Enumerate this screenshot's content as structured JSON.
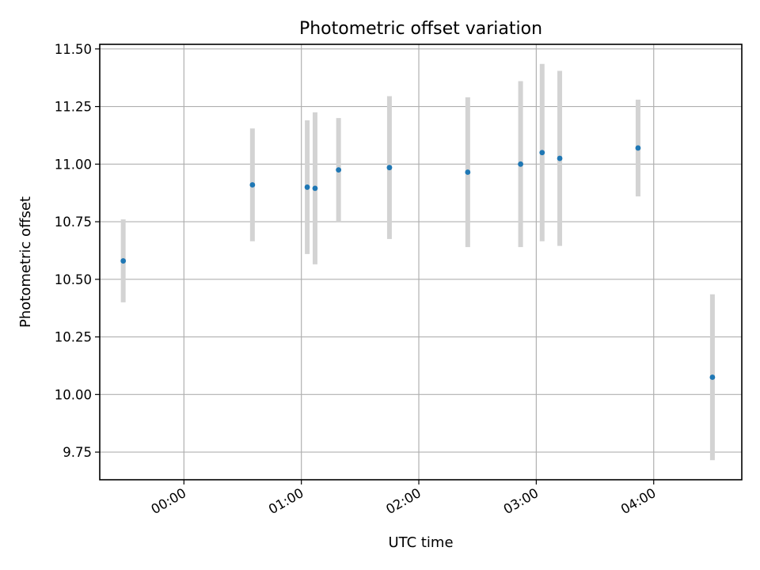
{
  "chart_data": {
    "type": "scatter",
    "title": "Photometric offset variation",
    "xlabel": "UTC time",
    "ylabel": "Photometric offset",
    "x_axis_type": "time",
    "x_ticks": [
      "00:00",
      "01:00",
      "02:00",
      "03:00",
      "04:00"
    ],
    "x_tick_minutes": [
      0,
      60,
      120,
      180,
      240
    ],
    "xlim_minutes": [
      -43,
      285
    ],
    "y_ticks": [
      "9.75",
      "10.00",
      "10.25",
      "10.50",
      "10.75",
      "11.00",
      "11.25",
      "11.50"
    ],
    "y_tick_values": [
      9.75,
      10.0,
      10.25,
      10.5,
      10.75,
      11.0,
      11.25,
      11.5
    ],
    "ylim": [
      9.63,
      11.52
    ],
    "grid": true,
    "colors": {
      "marker": "#1f77b4",
      "errorbar": "#d3d3d3",
      "grid": "#b0b0b0"
    },
    "series": [
      {
        "points": [
          {
            "x": "23:29",
            "y": 10.58,
            "yerr": 0.18
          },
          {
            "x": "00:35",
            "y": 10.91,
            "yerr": 0.245
          },
          {
            "x": "01:03",
            "y": 10.9,
            "yerr": 0.29
          },
          {
            "x": "01:07",
            "y": 10.895,
            "yerr": 0.33
          },
          {
            "x": "01:19",
            "y": 10.975,
            "yerr": 0.225
          },
          {
            "x": "01:45",
            "y": 10.985,
            "yerr": 0.31
          },
          {
            "x": "02:25",
            "y": 10.965,
            "yerr": 0.325
          },
          {
            "x": "02:52",
            "y": 11.0,
            "yerr": 0.36
          },
          {
            "x": "03:03",
            "y": 11.05,
            "yerr": 0.385
          },
          {
            "x": "03:12",
            "y": 11.025,
            "yerr": 0.38
          },
          {
            "x": "03:52",
            "y": 11.07,
            "yerr": 0.21
          },
          {
            "x": "04:30",
            "y": 10.075,
            "yerr": 0.36
          }
        ]
      }
    ]
  }
}
